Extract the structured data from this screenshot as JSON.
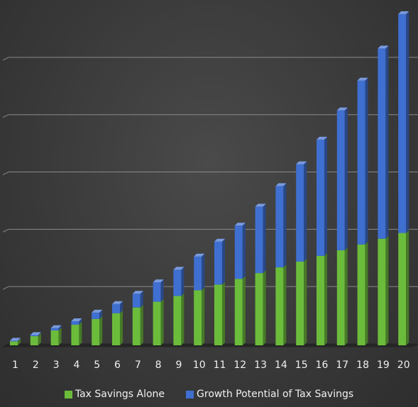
{
  "chart_data": {
    "type": "bar",
    "stacked": true,
    "style": "3d-column",
    "categories": [
      "1",
      "2",
      "3",
      "4",
      "5",
      "6",
      "7",
      "8",
      "9",
      "10",
      "11",
      "12",
      "13",
      "14",
      "15",
      "16",
      "17",
      "18",
      "19",
      "20"
    ],
    "series": [
      {
        "name": "Tax Savings Alone",
        "color": "#6cbc3c",
        "values": [
          0.7,
          1.6,
          2.6,
          3.6,
          4.6,
          5.6,
          6.6,
          7.6,
          8.6,
          9.6,
          10.6,
          11.6,
          12.6,
          13.6,
          14.6,
          15.6,
          16.6,
          17.6,
          18.6,
          19.6
        ]
      },
      {
        "name": "Growth Potential of Tax Savings",
        "color": "#3f6fd0",
        "values": [
          0.1,
          0.2,
          0.4,
          0.6,
          1.1,
          1.6,
          2.4,
          3.4,
          4.6,
          5.9,
          7.5,
          9.3,
          11.6,
          14.2,
          17.0,
          20.3,
          24.4,
          28.6,
          33.2,
          38.2
        ]
      }
    ],
    "ylim": [
      0,
      58.4
    ],
    "ytick_step": 10,
    "grid": true,
    "y_tick_labels_visible": false,
    "legend": "bottom"
  }
}
